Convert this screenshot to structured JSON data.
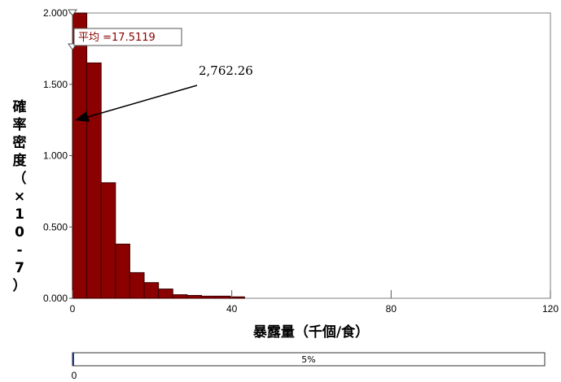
{
  "chart_data": {
    "type": "bar",
    "xlabel": "暴露量（千個/食）",
    "ylabel": "確率密度（×10-7）",
    "xlim": [
      0,
      120
    ],
    "ylim": [
      0,
      2.0
    ],
    "x_ticks": [
      "0",
      "40",
      "80",
      "120"
    ],
    "y_ticks": [
      "0.000",
      "0.500",
      "1.000",
      "1.500",
      "2.000"
    ],
    "bin_width": 3.6,
    "bins": [
      {
        "x0": 0.0,
        "value": 2.0
      },
      {
        "x0": 3.6,
        "value": 1.65
      },
      {
        "x0": 7.2,
        "value": 0.81
      },
      {
        "x0": 10.8,
        "value": 0.38
      },
      {
        "x0": 14.4,
        "value": 0.18
      },
      {
        "x0": 18.0,
        "value": 0.11
      },
      {
        "x0": 21.6,
        "value": 0.065
      },
      {
        "x0": 25.2,
        "value": 0.025
      },
      {
        "x0": 28.8,
        "value": 0.02
      },
      {
        "x0": 32.4,
        "value": 0.015
      },
      {
        "x0": 36.0,
        "value": 0.015
      },
      {
        "x0": 39.6,
        "value": 0.01
      }
    ],
    "bar_color": "#8b0000",
    "mean_label": "平均 =17.5119",
    "annotation": {
      "text": "2,762.26",
      "target_x": 0.4,
      "target_y": 1.26
    },
    "percentile_bar": {
      "label": "5%",
      "left_label": "0"
    },
    "grid": false
  }
}
